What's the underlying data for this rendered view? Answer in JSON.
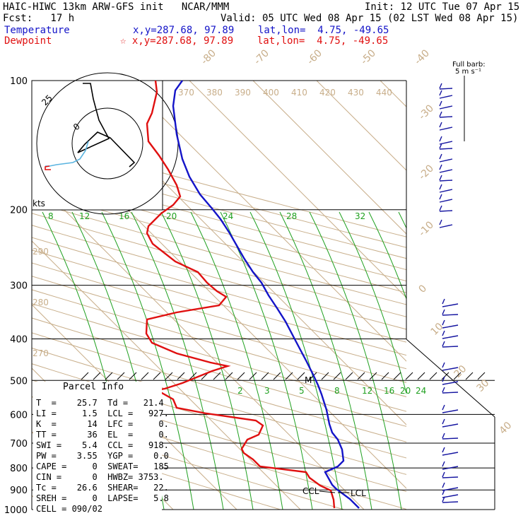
{
  "header": {
    "line1_left": "HAIC-HIWC 13km ARW-GFS init   NCAR/MMM",
    "line1_right": "Init: 12 UTC Tue 07 Apr 15",
    "line2_left": "Fcst:   17 h",
    "line2_right": "Valid: 05 UTC Wed 08 Apr 15 (02 LST Wed 08 Apr 15)",
    "temp_label": "Temperature",
    "temp_coord": "x,y=287.68, 97.89    lat,lon=  4.75, -49.65",
    "dew_label": "Dewpoint",
    "dew_coord": "☆ x,y=287.68, 97.89    lat,lon=  4.75, -49.65"
  },
  "barb_key": {
    "line1": "Full barb:",
    "line2": "5 m s⁻¹"
  },
  "hodograph": {
    "ring_inner_label": "0",
    "ring_outer_label": "25",
    "units": "kts"
  },
  "chart_data": {
    "type": "skew-t",
    "pressure_levels": [
      100,
      200,
      300,
      400,
      500,
      600,
      700,
      800,
      900,
      1000
    ],
    "isotherm_labels": [
      -80,
      -70,
      -60,
      -50,
      -40,
      -30,
      -20,
      -10,
      0,
      10,
      20,
      30,
      40
    ],
    "theta_labels": [
      370,
      380,
      390,
      400,
      410,
      420,
      430,
      440
    ],
    "theta_left_labels": [
      290,
      280,
      270
    ],
    "mixing_ratio_upper": [
      8,
      12,
      16,
      20,
      24,
      28,
      32
    ],
    "mixing_ratio_lower": [
      2,
      3,
      5,
      8,
      12,
      16,
      20,
      24
    ],
    "series": [
      {
        "name": "Temperature",
        "color": "#1414c8"
      },
      {
        "name": "Dewpoint",
        "color": "#e01010"
      }
    ],
    "annotations": {
      "ccl": "CCL",
      "lcl": "LCL",
      "mark": "M"
    }
  },
  "parcel_info": {
    "title": "Parcel Info",
    "rows": [
      "T  =    25.7  Td =   21.4",
      "LI =     1.5  LCL =   927.",
      "K  =      14  LFC =     0.",
      "TT =      36  EL  =     0.",
      "SWI =    5.4  CCL =   918.",
      "PW =    3.55  YGP =    0.0",
      "CAPE =     0  SWEAT=   185",
      "CIN =      0  HWBZ= 3753.",
      "Tc =    26.6  SHEAR=   22.",
      "SREH =     0  LAPSE=   5.8",
      "CELL = 090/02"
    ]
  }
}
